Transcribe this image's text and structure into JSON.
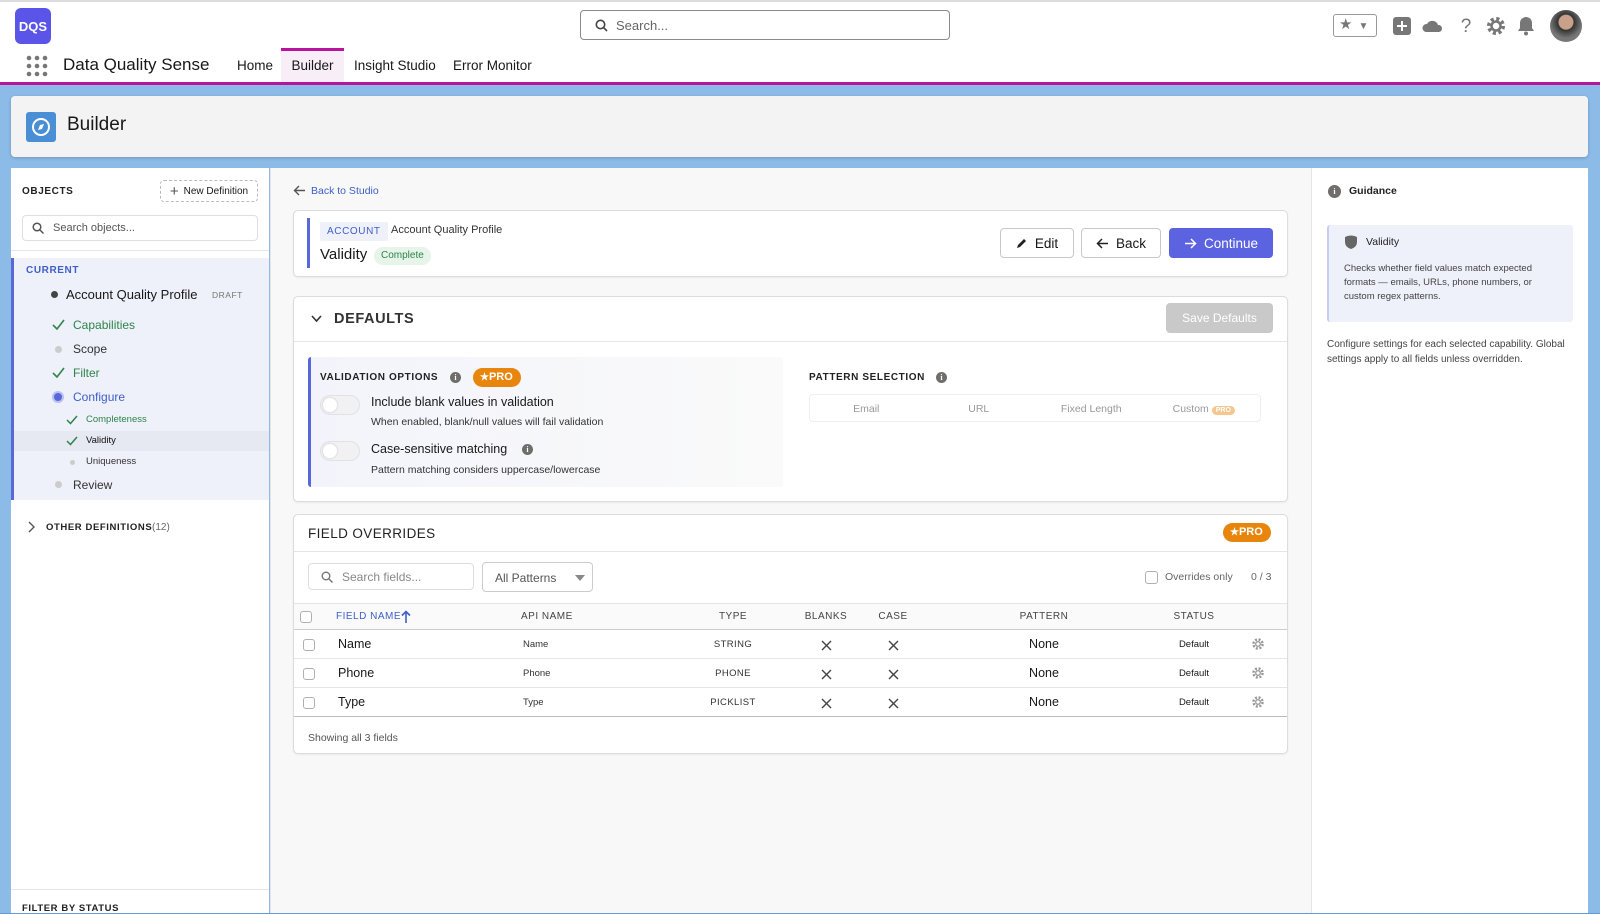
{
  "header": {
    "logo": "DQS",
    "search_placeholder": "Search...",
    "app_name": "Data Quality Sense",
    "nav": [
      "Home",
      "Builder",
      "Insight Studio",
      "Error Monitor"
    ]
  },
  "page_header": {
    "title": "Builder"
  },
  "sidebar": {
    "objects_label": "OBJECTS",
    "new_definition": "New Definition",
    "search_placeholder": "Search objects...",
    "current_label": "CURRENT",
    "profile": "Account Quality Profile",
    "profile_status": "DRAFT",
    "steps": [
      "Capabilities",
      "Scope",
      "Filter",
      "Configure"
    ],
    "substeps": [
      "Completeness",
      "Validity",
      "Uniqueness"
    ],
    "review": "Review",
    "other_definitions": "OTHER DEFINITIONS",
    "other_count": "(12)",
    "filter_label": "FILTER BY STATUS"
  },
  "main": {
    "back_link": "Back to Studio",
    "object_tag": "ACCOUNT",
    "profile_name": "Account Quality Profile",
    "capability": "Validity",
    "status": "Complete",
    "buttons": [
      "Edit",
      "Back",
      "Continue"
    ]
  },
  "defaults": {
    "title": "DEFAULTS",
    "save": "Save Defaults",
    "validation_options": "VALIDATION OPTIONS",
    "pro": "PRO",
    "options": [
      {
        "label": "Include blank values in validation",
        "description": "When enabled, blank/null values will fail validation"
      },
      {
        "label": "Case-sensitive matching",
        "description": "Pattern matching considers uppercase/lowercase"
      }
    ],
    "pattern_selection": "PATTERN SELECTION",
    "patterns": [
      "Email",
      "URL",
      "Fixed Length",
      "Custom"
    ],
    "custom_badge": "PRO"
  },
  "field_overrides": {
    "title": "FIELD OVERRIDES",
    "pro": "PRO",
    "search_placeholder": "Search fields...",
    "filter": "All Patterns",
    "overrides_only": "Overrides only",
    "count": "0 / 3",
    "columns": [
      "FIELD NAME",
      "API NAME",
      "TYPE",
      "BLANKS",
      "CASE",
      "PATTERN",
      "STATUS"
    ],
    "rows": [
      {
        "field_name": "Name",
        "api_name": "Name",
        "type": "STRING",
        "pattern": "None",
        "status": "Default"
      },
      {
        "field_name": "Phone",
        "api_name": "Phone",
        "type": "PHONE",
        "pattern": "None",
        "status": "Default"
      },
      {
        "field_name": "Type",
        "api_name": "Type",
        "type": "PICKLIST",
        "pattern": "None",
        "status": "Default"
      }
    ],
    "footer": "Showing all 3 fields"
  },
  "guidance": {
    "title": "Guidance",
    "card_title": "Validity",
    "card_text": "Checks whether field values match expected formats — emails, URLs, phone numbers, or custom regex patterns.",
    "text": "Configure settings for each selected capability. Global settings apply to all fields unless overridden."
  }
}
